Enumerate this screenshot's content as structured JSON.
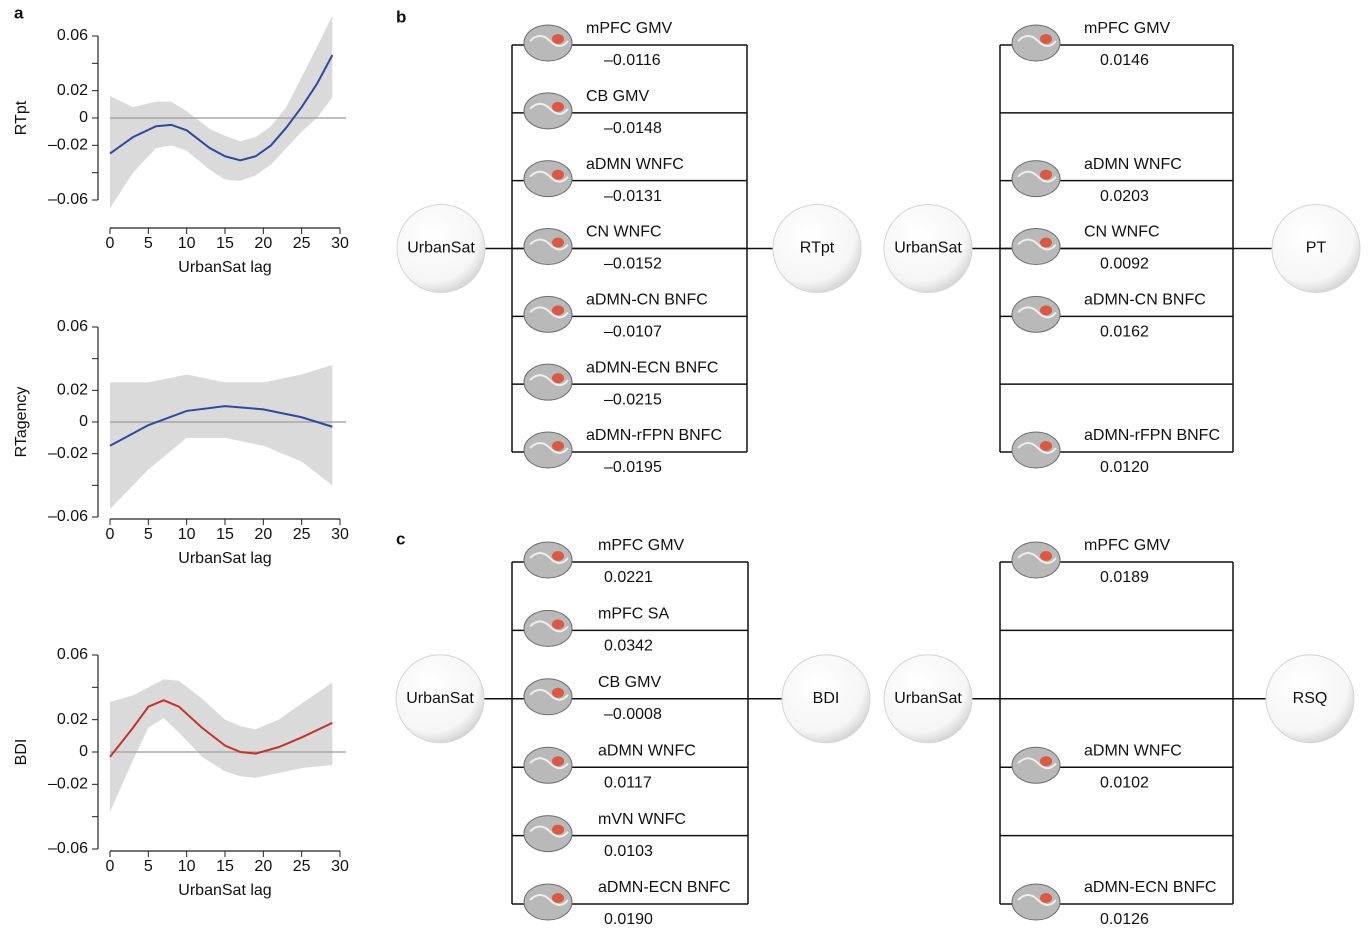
{
  "panel_labels": [
    "a",
    "b",
    "c"
  ],
  "chart_data": [
    {
      "type": "line",
      "ylabel": "RTpt",
      "xlabel": "UrbanSat lag",
      "xlim": [
        0,
        30
      ],
      "xticks": [
        0,
        5,
        10,
        15,
        20,
        25,
        30
      ],
      "ylim": [
        -0.06,
        0.06
      ],
      "yticks": [
        {
          "value": 0.06,
          "label": "0.06"
        },
        {
          "value": 0.02,
          "label": "0.02"
        },
        0,
        {
          "value": -0.02,
          "label": "–0.02"
        },
        {
          "value": -0.06,
          "label": "–0.06"
        }
      ],
      "minor_yticks": [
        0.04,
        -0.04
      ],
      "hline": 0,
      "band_color": "#dadada",
      "x": [
        0,
        3,
        6,
        8,
        10,
        13,
        15,
        17,
        19,
        21,
        23,
        25,
        27,
        29
      ],
      "series": [
        {
          "color": "#2e4a9e",
          "values": [
            -0.026,
            -0.014,
            -0.006,
            -0.005,
            -0.009,
            -0.022,
            -0.028,
            -0.031,
            -0.028,
            -0.02,
            -0.007,
            0.008,
            0.025,
            0.046
          ],
          "lower": [
            -0.066,
            -0.04,
            -0.022,
            -0.02,
            -0.024,
            -0.038,
            -0.045,
            -0.046,
            -0.042,
            -0.034,
            -0.022,
            -0.01,
            0.0,
            0.015
          ],
          "upper": [
            0.016,
            0.008,
            0.012,
            0.012,
            0.005,
            -0.008,
            -0.013,
            -0.017,
            -0.014,
            -0.006,
            0.008,
            0.03,
            0.052,
            0.075
          ]
        }
      ]
    },
    {
      "type": "line",
      "ylabel": "RTagency",
      "xlabel": "UrbanSat lag",
      "xlim": [
        0,
        30
      ],
      "xticks": [
        0,
        5,
        10,
        15,
        20,
        25,
        30
      ],
      "ylim": [
        -0.06,
        0.06
      ],
      "yticks": [
        {
          "value": 0.06,
          "label": "0.06"
        },
        {
          "value": 0.02,
          "label": "0.02"
        },
        0,
        {
          "value": -0.02,
          "label": "–0.02"
        },
        {
          "value": -0.06,
          "label": "–0.06"
        }
      ],
      "minor_yticks": [
        0.04,
        -0.04
      ],
      "hline": 0,
      "band_color": "#dadada",
      "x": [
        0,
        5,
        10,
        15,
        20,
        25,
        29
      ],
      "series": [
        {
          "color": "#2e4a9e",
          "values": [
            -0.015,
            -0.002,
            0.007,
            0.01,
            0.008,
            0.003,
            -0.003
          ],
          "lower": [
            -0.055,
            -0.03,
            -0.01,
            -0.01,
            -0.015,
            -0.025,
            -0.04
          ],
          "upper": [
            0.025,
            0.025,
            0.03,
            0.025,
            0.025,
            0.03,
            0.036
          ]
        }
      ]
    },
    {
      "type": "line",
      "ylabel": "BDI",
      "xlabel": "UrbanSat lag",
      "xlim": [
        0,
        30
      ],
      "xticks": [
        0,
        5,
        10,
        15,
        20,
        25,
        30
      ],
      "ylim": [
        -0.06,
        0.06
      ],
      "yticks": [
        {
          "value": 0.06,
          "label": "0.06"
        },
        {
          "value": 0.02,
          "label": "0.02"
        },
        0,
        {
          "value": -0.02,
          "label": "–0.02"
        },
        {
          "value": -0.06,
          "label": "–0.06"
        }
      ],
      "minor_yticks": [
        0.04,
        -0.04
      ],
      "hline": 0,
      "band_color": "#dadada",
      "x": [
        0,
        3,
        5,
        7,
        9,
        12,
        15,
        17,
        19,
        22,
        25,
        29
      ],
      "series": [
        {
          "color": "#c0362c",
          "values": [
            -0.003,
            0.015,
            0.028,
            0.032,
            0.028,
            0.015,
            0.004,
            0.0,
            -0.001,
            0.003,
            0.009,
            0.018
          ],
          "lower": [
            -0.037,
            -0.005,
            0.015,
            0.021,
            0.012,
            -0.003,
            -0.012,
            -0.015,
            -0.016,
            -0.013,
            -0.01,
            -0.008
          ],
          "upper": [
            0.031,
            0.035,
            0.04,
            0.045,
            0.044,
            0.033,
            0.02,
            0.016,
            0.014,
            0.02,
            0.03,
            0.043
          ]
        }
      ]
    }
  ],
  "diagrams": [
    {
      "left": "UrbanSat",
      "right": "RTpt",
      "rows": [
        {
          "label": "mPFC GMV",
          "value": "–0.0116"
        },
        {
          "label": "CB GMV",
          "value": "–0.0148"
        },
        {
          "label": "aDMN WNFC",
          "value": "–0.0131"
        },
        {
          "label": "CN WNFC",
          "value": "–0.0152"
        },
        {
          "label": "aDMN-CN BNFC",
          "value": "–0.0107"
        },
        {
          "label": "aDMN-ECN BNFC",
          "value": "–0.0215"
        },
        {
          "label": "aDMN-rFPN BNFC",
          "value": "–0.0195"
        }
      ]
    },
    {
      "left": "UrbanSat",
      "right": "PT",
      "rows": [
        {
          "label": "mPFC GMV",
          "value": "0.0146"
        },
        null,
        {
          "label": "aDMN WNFC",
          "value": "0.0203"
        },
        {
          "label": "CN WNFC",
          "value": "0.0092"
        },
        {
          "label": "aDMN-CN BNFC",
          "value": "0.0162"
        },
        null,
        {
          "label": "aDMN-rFPN BNFC",
          "value": "0.0120"
        }
      ]
    },
    {
      "left": "UrbanSat",
      "right": "BDI",
      "rows": [
        {
          "label": "mPFC GMV",
          "value": "0.0221"
        },
        {
          "label": "mPFC SA",
          "value": "0.0342"
        },
        {
          "label": "CB GMV",
          "value": "–0.0008"
        },
        {
          "label": "aDMN WNFC",
          "value": "0.0117"
        },
        {
          "label": "mVN WNFC",
          "value": "0.0103"
        },
        {
          "label": "aDMN-ECN BNFC",
          "value": "0.0190"
        }
      ]
    },
    {
      "left": "UrbanSat",
      "right": "RSQ",
      "rows": [
        {
          "label": "mPFC GMV",
          "value": "0.0189"
        },
        null,
        null,
        {
          "label": "aDMN WNFC",
          "value": "0.0102"
        },
        null,
        {
          "label": "aDMN-ECN BNFC",
          "value": "0.0126"
        }
      ]
    }
  ]
}
